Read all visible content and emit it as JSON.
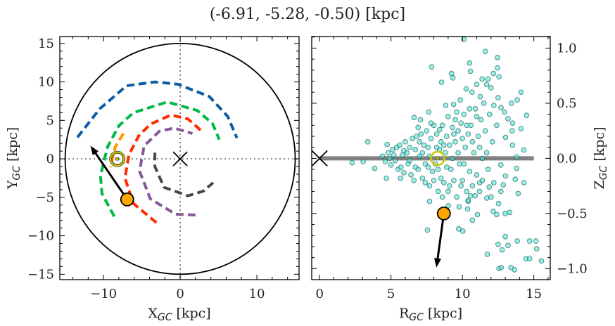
{
  "title": "(-6.91, -5.28, -0.50) [kpc]",
  "chart_data": [
    {
      "type": "line",
      "xlabel": {
        "main": "X",
        "sub": "GC",
        "unit": " [kpc]"
      },
      "ylabel": {
        "main": "Y",
        "sub": "GC",
        "unit": " [kpc]"
      },
      "xlim": [
        -15.7,
        15.5
      ],
      "ylim": [
        -15.7,
        15.9
      ],
      "xticks": [
        -10,
        0,
        10
      ],
      "xtick_labels": [
        "−10",
        "0",
        "10"
      ],
      "yticks": [
        -15,
        -10,
        -5,
        0,
        5,
        10,
        15
      ],
      "ytick_labels": [
        "−15",
        "−10",
        "−5",
        "0",
        "5",
        "10",
        "15"
      ],
      "grid": false,
      "boundary_circle_radius": 15,
      "center_marker": [
        0,
        0
      ],
      "sun": [
        -8.2,
        0
      ],
      "star": [
        -6.91,
        -5.28
      ],
      "velocity_arrow_tip": [
        -11.7,
        1.7
      ],
      "arms": [
        {
          "color": "#0C5DA5",
          "points": [
            [
              -13.4,
              2.8
            ],
            [
              -10.5,
              6.5
            ],
            [
              -7.0,
              9.5
            ],
            [
              -3.3,
              10.0
            ],
            [
              -0.3,
              9.7
            ],
            [
              3.8,
              8.1
            ],
            [
              6.2,
              5.5
            ],
            [
              7.4,
              2.7
            ]
          ]
        },
        {
          "color": "#00B945",
          "points": [
            [
              -8.6,
              -7.5
            ],
            [
              -10.2,
              -4.5
            ],
            [
              -10.4,
              -2.2
            ],
            [
              -9.5,
              1.5
            ],
            [
              -8.0,
              4.3
            ],
            [
              -6.1,
              6.0
            ],
            [
              -1.7,
              7.4
            ],
            [
              2.2,
              6.3
            ],
            [
              4.2,
              4.6
            ],
            [
              5.1,
              2.5
            ]
          ]
        },
        {
          "color": "#FF9500",
          "points": [
            [
              -7.4,
              3.3
            ],
            [
              -8.5,
              1.5
            ],
            [
              -9.1,
              -1.1
            ]
          ]
        },
        {
          "color": "#FF2C00",
          "points": [
            [
              -3.1,
              -8.3
            ],
            [
              -6.1,
              -5.8
            ],
            [
              -7.2,
              -2.5
            ],
            [
              -6.7,
              0.5
            ],
            [
              -5.4,
              3.0
            ],
            [
              -3.9,
              4.5
            ],
            [
              -1.2,
              5.7
            ],
            [
              1.0,
              5.2
            ],
            [
              2.7,
              3.7
            ]
          ]
        },
        {
          "color": "#845B97",
          "points": [
            [
              2.0,
              -7.3
            ],
            [
              -0.6,
              -7.2
            ],
            [
              -3.9,
              -5.2
            ],
            [
              -5.3,
              -1.6
            ],
            [
              -4.7,
              1.7
            ],
            [
              -2.7,
              3.6
            ],
            [
              -0.8,
              4.0
            ],
            [
              1.6,
              3.3
            ]
          ]
        },
        {
          "color": "#474747",
          "points": [
            [
              -3.3,
              0.8
            ],
            [
              -3.3,
              -1.0
            ],
            [
              -2.1,
              -3.7
            ],
            [
              1.0,
              -4.8
            ],
            [
              3.0,
              -4.2
            ],
            [
              4.3,
              -3.1
            ]
          ]
        }
      ]
    },
    {
      "type": "scatter",
      "xlabel": {
        "main": "R",
        "sub": "GC",
        "unit": " [kpc]"
      },
      "ylabel": {
        "main": "Z",
        "sub": "GC",
        "unit": " [kpc]"
      },
      "xlim": [
        -0.55,
        16.15
      ],
      "ylim": [
        -1.1,
        1.105
      ],
      "xticks": [
        0,
        5,
        10,
        15
      ],
      "xtick_labels": [
        "0",
        "5",
        "10",
        "15"
      ],
      "yticks": [
        -1.0,
        -0.5,
        0.0,
        0.5,
        1.0
      ],
      "ytick_labels": [
        "−1.0",
        "−0.5",
        "0.0",
        "0.5",
        "1.0"
      ],
      "grid": false,
      "marker_color": "#40E0D0",
      "plane_line": {
        "x": [
          0,
          15
        ],
        "y": 0,
        "color": "#808080"
      },
      "center_marker": [
        0,
        0
      ],
      "sun": [
        8.27,
        0
      ],
      "star": [
        8.7,
        -0.5
      ],
      "velocity_arrow_tip": [
        8.18,
        -0.99
      ],
      "points": [
        [
          10.1,
          1.08
        ],
        [
          11.6,
          0.97
        ],
        [
          12.45,
          0.915
        ],
        [
          7.85,
          0.83
        ],
        [
          10.5,
          0.865
        ],
        [
          12.46,
          0.82
        ],
        [
          10.56,
          0.79
        ],
        [
          9.24,
          0.77
        ],
        [
          9.33,
          0.73
        ],
        [
          8.54,
          0.69
        ],
        [
          12.17,
          0.77
        ],
        [
          12.56,
          0.74
        ],
        [
          11.38,
          0.72
        ],
        [
          11.79,
          0.72
        ],
        [
          11.0,
          0.67
        ],
        [
          11.7,
          0.67
        ],
        [
          10.26,
          0.63
        ],
        [
          12.0,
          0.64
        ],
        [
          10.67,
          0.6
        ],
        [
          11.25,
          0.56
        ],
        [
          14.1,
          0.6
        ],
        [
          12.5,
          0.55
        ],
        [
          13.43,
          0.5
        ],
        [
          13.84,
          0.53
        ],
        [
          9.85,
          0.53
        ],
        [
          8.83,
          0.48
        ],
        [
          9.38,
          0.49
        ],
        [
          7.64,
          0.42
        ],
        [
          6.62,
          0.37
        ],
        [
          7.06,
          0.35
        ],
        [
          14.5,
          0.39
        ],
        [
          14.1,
          0.27
        ],
        [
          3.37,
          0.15
        ],
        [
          4.73,
          0.126
        ],
        [
          2.28,
          -0.04
        ],
        [
          3.05,
          -0.03
        ],
        [
          3.86,
          -0.09
        ],
        [
          4.68,
          -0.18
        ],
        [
          5.67,
          -0.18
        ],
        [
          14.3,
          0.076
        ],
        [
          13.8,
          0.012
        ],
        [
          13.8,
          -0.09
        ],
        [
          13.7,
          -0.19
        ],
        [
          14.3,
          -0.22
        ],
        [
          13.9,
          -0.32
        ],
        [
          7.7,
          -0.39
        ],
        [
          9.01,
          -0.43
        ],
        [
          9.77,
          -0.44
        ],
        [
          10.36,
          -0.46
        ],
        [
          11.05,
          -0.51
        ],
        [
          12.15,
          -0.48
        ],
        [
          12.4,
          -0.51
        ],
        [
          13.0,
          -0.5
        ],
        [
          13.3,
          -0.49
        ],
        [
          10.7,
          -0.56
        ],
        [
          7.55,
          -0.65
        ],
        [
          9.74,
          -0.64
        ],
        [
          10.03,
          -0.66
        ],
        [
          13.0,
          -0.71
        ],
        [
          12.5,
          -0.78
        ],
        [
          13.19,
          -0.79
        ],
        [
          13.84,
          -0.75
        ],
        [
          14.7,
          -0.75
        ],
        [
          15.15,
          -0.75
        ],
        [
          12.78,
          -0.83
        ],
        [
          15.2,
          -0.82
        ],
        [
          11.74,
          -0.87
        ],
        [
          14.45,
          -0.91
        ],
        [
          14.7,
          -0.91
        ],
        [
          15.53,
          -0.93
        ],
        [
          12.56,
          -1.0
        ],
        [
          12.72,
          -0.99
        ],
        [
          13.4,
          -0.99
        ],
        [
          13.65,
          -1.01
        ],
        [
          12.2,
          0.48
        ],
        [
          12.7,
          0.46
        ],
        [
          12.94,
          0.42
        ],
        [
          13.19,
          0.36
        ],
        [
          13.51,
          0.32
        ],
        [
          13.48,
          0.25
        ],
        [
          13.02,
          0.19
        ],
        [
          13.51,
          0.12
        ],
        [
          12.69,
          -0.06
        ],
        [
          13.02,
          -0.16
        ],
        [
          12.86,
          -0.24
        ],
        [
          12.69,
          -0.3
        ],
        [
          12.53,
          -0.41
        ],
        [
          11.87,
          -0.26
        ],
        [
          11.71,
          -0.36
        ],
        [
          11.21,
          -0.22
        ],
        [
          10.56,
          -0.34
        ],
        [
          10.89,
          -0.34
        ],
        [
          10.4,
          -0.39
        ],
        [
          4.4,
          0.02
        ],
        [
          4.6,
          -0.03
        ],
        [
          4.8,
          0.05
        ],
        [
          5.0,
          -0.06
        ],
        [
          5.1,
          0.08
        ],
        [
          5.3,
          -0.02
        ],
        [
          5.4,
          0.1
        ],
        [
          5.5,
          -0.1
        ],
        [
          4.9,
          0.0
        ],
        [
          5.2,
          0.03
        ],
        [
          5.6,
          0.12
        ],
        [
          5.7,
          -0.08
        ],
        [
          5.8,
          0.03
        ],
        [
          5.9,
          -0.13
        ],
        [
          6.0,
          0.15
        ],
        [
          6.1,
          0.05
        ],
        [
          6.2,
          -0.05
        ],
        [
          6.3,
          0.1
        ],
        [
          6.4,
          -0.15
        ],
        [
          6.5,
          0.18
        ],
        [
          5.9,
          0.07
        ],
        [
          6.3,
          -0.02
        ],
        [
          6.6,
          -0.2
        ],
        [
          6.7,
          0.08
        ],
        [
          6.8,
          0.2
        ],
        [
          6.9,
          -0.1
        ],
        [
          7.0,
          0.02
        ],
        [
          7.1,
          0.22
        ],
        [
          7.2,
          -0.18
        ],
        [
          7.3,
          0.12
        ],
        [
          7.4,
          -0.05
        ],
        [
          7.5,
          0.25
        ],
        [
          6.7,
          -0.08
        ],
        [
          7.0,
          0.15
        ],
        [
          7.2,
          0.05
        ],
        [
          7.4,
          -0.22
        ],
        [
          6.9,
          0.28
        ],
        [
          7.6,
          0.1
        ],
        [
          7.7,
          -0.25
        ],
        [
          7.8,
          0.18
        ],
        [
          7.9,
          -0.12
        ],
        [
          8.0,
          0.3
        ],
        [
          8.1,
          -0.05
        ],
        [
          8.2,
          0.22
        ],
        [
          8.3,
          -0.3
        ],
        [
          8.4,
          0.08
        ],
        [
          8.5,
          -0.18
        ],
        [
          7.6,
          -0.08
        ],
        [
          7.8,
          0.32
        ],
        [
          8.0,
          -0.2
        ],
        [
          8.2,
          0.1
        ],
        [
          8.4,
          0.26
        ],
        [
          7.7,
          0.02
        ],
        [
          8.3,
          -0.1
        ],
        [
          8.5,
          0.15
        ],
        [
          8.6,
          0.3
        ],
        [
          8.7,
          -0.22
        ],
        [
          8.8,
          0.05
        ],
        [
          8.9,
          0.2
        ],
        [
          9.0,
          -0.3
        ],
        [
          9.1,
          0.12
        ],
        [
          9.2,
          -0.1
        ],
        [
          9.3,
          0.28
        ],
        [
          9.4,
          -0.2
        ],
        [
          9.5,
          0.35
        ],
        [
          8.7,
          0.12
        ],
        [
          8.9,
          -0.08
        ],
        [
          9.1,
          -0.25
        ],
        [
          9.3,
          0.0
        ],
        [
          9.5,
          0.15
        ],
        [
          8.6,
          -0.35
        ],
        [
          9.0,
          0.38
        ],
        [
          9.4,
          0.22
        ],
        [
          9.6,
          -0.35
        ],
        [
          9.7,
          0.25
        ],
        [
          9.8,
          -0.05
        ],
        [
          9.9,
          0.32
        ],
        [
          10.0,
          -0.2
        ],
        [
          10.1,
          0.4
        ],
        [
          10.2,
          0.1
        ],
        [
          10.3,
          -0.3
        ],
        [
          10.4,
          0.22
        ],
        [
          10.5,
          -0.12
        ],
        [
          9.7,
          0.05
        ],
        [
          9.9,
          -0.25
        ],
        [
          10.1,
          -0.05
        ],
        [
          10.3,
          0.3
        ],
        [
          10.5,
          0.45
        ],
        [
          9.6,
          0.42
        ],
        [
          10.0,
          0.18
        ],
        [
          10.4,
          -0.38
        ],
        [
          10.6,
          0.3
        ],
        [
          10.7,
          -0.25
        ],
        [
          10.8,
          0.05
        ],
        [
          10.9,
          0.45
        ],
        [
          11.0,
          -0.15
        ],
        [
          11.1,
          0.2
        ],
        [
          11.2,
          -0.3
        ],
        [
          11.3,
          0.35
        ],
        [
          11.4,
          0.0
        ],
        [
          11.5,
          0.5
        ],
        [
          10.7,
          0.15
        ],
        [
          11.0,
          0.38
        ],
        [
          11.2,
          0.1
        ],
        [
          11.4,
          -0.2
        ],
        [
          11.6,
          0.25
        ],
        [
          11.8,
          -0.1
        ],
        [
          11.9,
          0.4
        ],
        [
          12.1,
          0.15
        ],
        [
          12.2,
          -0.22
        ],
        [
          12.4,
          0.3
        ],
        [
          11.7,
          0.05
        ],
        [
          12.0,
          -0.35
        ]
      ]
    }
  ]
}
